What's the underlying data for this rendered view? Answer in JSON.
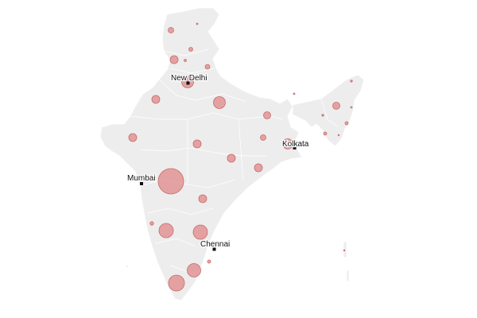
{
  "map": {
    "land_color": "#ededed",
    "bubble_color": "#e08080",
    "marker_color": "#111111"
  },
  "cities": [
    {
      "id": "new-delhi",
      "label": "New Delhi"
    },
    {
      "id": "kolkata",
      "label": "Kolkata"
    },
    {
      "id": "mumbai",
      "label": "Mumbai"
    },
    {
      "id": "chennai",
      "label": "Chennai"
    }
  ]
}
